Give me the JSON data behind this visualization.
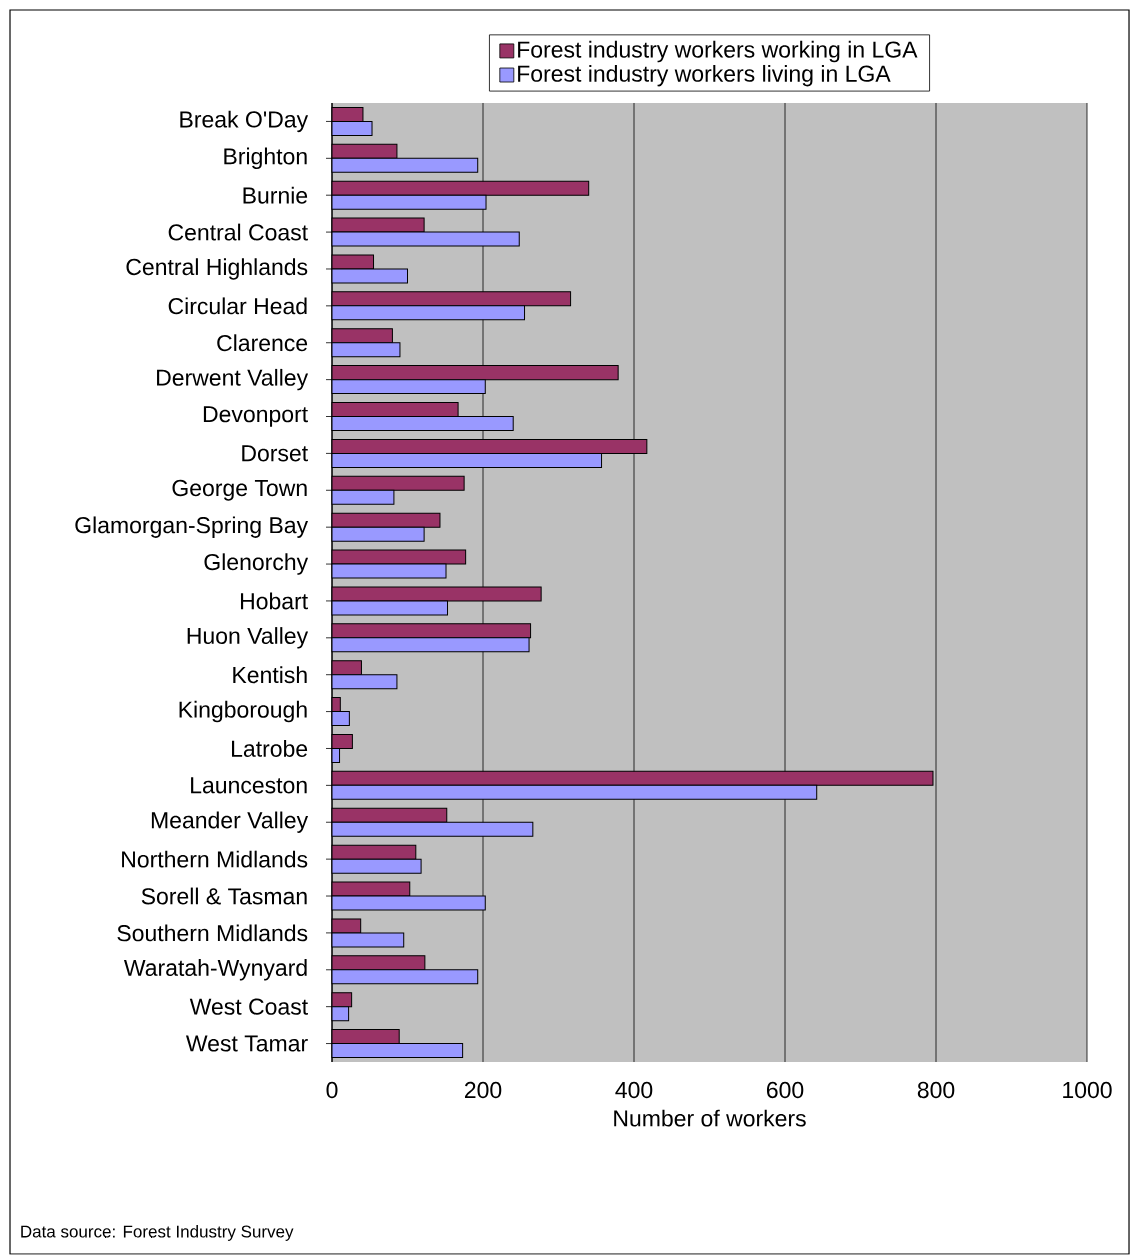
{
  "chart_data": {
    "type": "bar",
    "orientation": "horizontal",
    "xlabel": "Number of workers",
    "categories": [
      "Break O'Day",
      "Brighton",
      "Burnie",
      "Central Coast",
      "Central Highlands",
      "Circular Head",
      "Clarence",
      "Derwent Valley",
      "Devonport",
      "Dorset",
      "George Town",
      "Glamorgan-Spring Bay",
      "Glenorchy",
      "Hobart",
      "Huon Valley",
      "Kentish",
      "Kingborough",
      "Latrobe",
      "Launceston",
      "Meander Valley",
      "Northern Midlands",
      "Sorell & Tasman",
      "Southern Midlands",
      "Waratah-Wynyard",
      "West Coast",
      "West Tamar"
    ],
    "series": [
      {
        "name": "Forest industry workers working in LGA",
        "color": "#993366",
        "values": [
          41,
          86,
          340,
          122,
          55,
          316,
          80,
          379,
          167,
          417,
          175,
          143,
          177,
          277,
          263,
          39,
          11,
          27,
          796,
          152,
          111,
          103,
          38,
          123,
          26,
          89
        ]
      },
      {
        "name": "Forest industry workers living in LGA",
        "color": "#9999ff",
        "values": [
          53,
          193,
          204,
          248,
          100,
          255,
          90,
          203,
          240,
          357,
          82,
          122,
          151,
          153,
          261,
          86,
          23,
          10,
          642,
          266,
          118,
          203,
          95,
          193,
          22,
          173
        ]
      }
    ],
    "xlim": [
      0,
      1000
    ],
    "xticks": [
      0,
      200,
      400,
      600,
      800,
      1000
    ],
    "grid": "x",
    "legend": "top",
    "annotations": [
      "Data source: Forest Industry Survey"
    ]
  }
}
